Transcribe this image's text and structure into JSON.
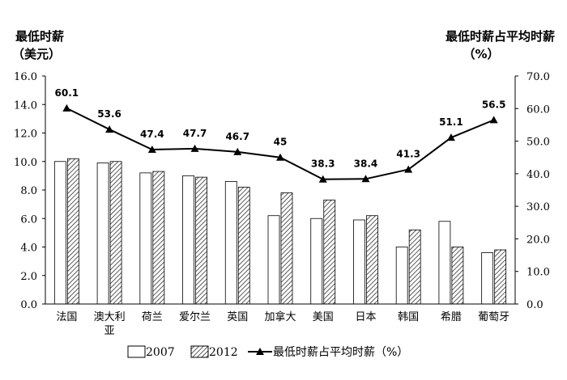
{
  "chart_data": {
    "type": "bar",
    "categories": [
      "法国",
      "澳大利亚",
      "荷兰",
      "爱尔兰",
      "英国",
      "加拿大",
      "美国",
      "日本",
      "韩国",
      "希腊",
      "葡萄牙"
    ],
    "category_labels": [
      [
        "法国"
      ],
      [
        "澳大利",
        "亚"
      ],
      [
        "荷兰"
      ],
      [
        "爱尔兰"
      ],
      [
        "英国"
      ],
      [
        "加拿大"
      ],
      [
        "美国"
      ],
      [
        "日本"
      ],
      [
        "韩国"
      ],
      [
        "希腊"
      ],
      [
        "葡萄牙"
      ]
    ],
    "series": [
      {
        "name": "2007",
        "type": "bar",
        "axis": "left",
        "fill": "#ffffff",
        "values": [
          10.0,
          9.9,
          9.2,
          9.0,
          8.6,
          6.2,
          6.0,
          5.9,
          4.0,
          5.8,
          3.6
        ]
      },
      {
        "name": "2012",
        "type": "bar",
        "axis": "left",
        "fill": "hatch",
        "values": [
          10.2,
          10.0,
          9.3,
          8.9,
          8.2,
          7.8,
          7.3,
          6.2,
          5.2,
          4.0,
          3.8
        ]
      },
      {
        "name": "最低时薪占平均时薪（%）",
        "type": "line",
        "axis": "right",
        "marker": "triangle",
        "values": [
          60.1,
          53.6,
          47.4,
          47.7,
          46.7,
          45.0,
          38.3,
          38.4,
          41.3,
          51.1,
          56.5
        ],
        "labels": [
          "60.1",
          "53.6",
          "47.4",
          "47.7",
          "46.7",
          "45",
          "38.3",
          "38.4",
          "41.3",
          "51.1",
          "56.5"
        ]
      }
    ],
    "left_axis": {
      "title_line1": "最低时薪",
      "title_line2": "（美元）",
      "ylim": [
        0,
        16
      ],
      "ticks": [
        "0.0",
        "2.0",
        "4.0",
        "6.0",
        "8.0",
        "10.0",
        "12.0",
        "14.0",
        "16.0"
      ]
    },
    "right_axis": {
      "title_line1": "最低时薪占平均时薪",
      "title_line2": "（%）",
      "ylim": [
        0,
        70
      ],
      "ticks": [
        "0.0",
        "10.0",
        "20.0",
        "30.0",
        "40.0",
        "50.0",
        "60.0",
        "70.0"
      ]
    },
    "grid": false,
    "legend": {
      "position": "bottom",
      "items": [
        {
          "label": "2007",
          "kind": "bar-plain"
        },
        {
          "label": "2012",
          "kind": "bar-hatch"
        },
        {
          "label": "最低时薪占平均时薪（%）",
          "kind": "line-triangle"
        }
      ]
    }
  }
}
